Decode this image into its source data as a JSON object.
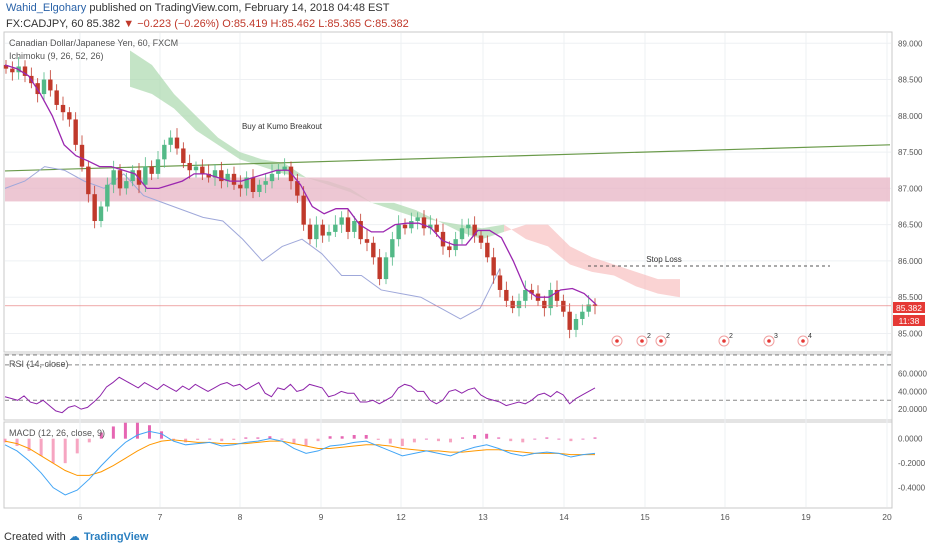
{
  "header": {
    "author": "Wahid_Elgohary",
    "published": " published on TradingView.com, February 14, 2018 04:48 EST",
    "symbol": "FX:CADJPY, 60",
    "last": "85.382",
    "change": "−0.223 (−0.26%)",
    "ohlc": "O:85.419 H:85.462 L:85.365 C:85.382"
  },
  "footer": {
    "created": "Created with",
    "brand": "TradingView"
  },
  "chart_data": [
    {
      "type": "candlestick",
      "title": "Canadian Dollar/Japanese Yen, 60, FXCM",
      "indicator": "Ichimoku (9, 26, 52, 26)",
      "ylim": [
        84.8,
        89.1
      ],
      "y_ticks": [
        "89.000",
        "88.500",
        "88.000",
        "87.500",
        "87.000",
        "86.500",
        "86.000",
        "85.500",
        "85.000"
      ],
      "x_ticks": [
        "6",
        "7",
        "8",
        "9",
        "12",
        "13",
        "14",
        "15",
        "16",
        "19",
        "20"
      ],
      "price_label": "85.382",
      "countdown_label": "11:38",
      "colors": {
        "up": "#53b987",
        "down": "#c0392b",
        "tenkan": "#9b27b0",
        "chikou": "#9fa8da",
        "cloud_bear": "#f8bbbb",
        "cloud_bull": "#a5d6a7",
        "zone": "#e8b9c8",
        "trend": "#6a9a4a"
      },
      "annotations": {
        "buy": "Buy at Kumo Breakout",
        "stop": "Stop Loss"
      },
      "zone": [
        86.82,
        87.15
      ],
      "trend_line": [
        [
          0,
          87.24
        ],
        [
          1,
          87.6
        ]
      ],
      "stop_loss_level": 85.93,
      "tenkan": [
        88.7,
        88.65,
        88.55,
        88.3,
        88.0,
        87.6,
        87.45,
        87.38,
        87.3,
        87.3,
        87.25,
        87.2,
        87.0,
        87.0,
        87.05,
        87.1,
        87.2,
        87.2,
        87.15,
        87.1,
        87.1,
        87.15,
        87.2,
        87.25,
        87.25,
        87.05,
        86.75,
        86.65,
        86.72,
        86.72,
        86.5,
        86.4,
        86.4,
        86.5,
        86.52,
        86.52,
        86.46,
        86.28,
        86.22,
        86.22,
        86.42,
        86.42,
        86.32,
        86.0,
        85.62,
        85.5,
        85.5,
        85.6,
        85.62,
        85.55,
        85.4
      ],
      "chikou": [
        87.0,
        87.1,
        87.3,
        87.25,
        87.1,
        87.0,
        87.2,
        86.9,
        86.8,
        86.7,
        86.6,
        86.55,
        86.3,
        86.0,
        86.2,
        86.3,
        86.1,
        85.8,
        85.8,
        85.6,
        85.55,
        85.5,
        85.35,
        85.2,
        85.35,
        85.9
      ],
      "cloud_a": [
        88.9,
        88.7,
        88.3,
        88.0,
        87.7,
        87.5,
        87.4,
        87.35,
        87.15,
        87.1,
        87.0,
        86.8,
        86.8,
        86.7,
        86.55,
        86.5,
        86.45,
        86.5,
        86.3,
        86.2,
        85.95,
        85.85,
        85.8,
        85.65,
        85.55,
        85.5
      ],
      "cloud_b": [
        88.4,
        88.3,
        88.1,
        87.8,
        87.6,
        87.4,
        87.3,
        87.2,
        87.15,
        87.05,
        86.95,
        86.8,
        86.7,
        86.6,
        86.55,
        86.4,
        86.3,
        86.4,
        86.5,
        86.5,
        86.2,
        86.05,
        85.95,
        85.85,
        85.75,
        85.75
      ],
      "closes": [
        88.65,
        88.6,
        88.68,
        88.55,
        88.45,
        88.3,
        88.5,
        88.35,
        88.15,
        88.05,
        87.95,
        87.6,
        87.3,
        86.92,
        86.55,
        86.75,
        87.05,
        87.25,
        87.0,
        87.1,
        87.25,
        87.05,
        87.3,
        87.2,
        87.4,
        87.6,
        87.7,
        87.55,
        87.35,
        87.25,
        87.3,
        87.2,
        87.15,
        87.25,
        87.1,
        87.2,
        87.05,
        87.0,
        87.15,
        86.95,
        87.05,
        87.1,
        87.2,
        87.25,
        87.3,
        87.1,
        86.9,
        86.5,
        86.3,
        86.5,
        86.35,
        86.4,
        86.5,
        86.6,
        86.4,
        86.55,
        86.3,
        86.25,
        86.05,
        85.75,
        86.05,
        86.3,
        86.5,
        86.45,
        86.55,
        86.6,
        86.45,
        86.5,
        86.4,
        86.2,
        86.15,
        86.3,
        86.45,
        86.5,
        86.35,
        86.25,
        86.05,
        85.8,
        85.6,
        85.45,
        85.35,
        85.45,
        85.6,
        85.55,
        85.45,
        85.35,
        85.6,
        85.45,
        85.3,
        85.05,
        85.2,
        85.3,
        85.4,
        85.38
      ],
      "rsi": {
        "label": "RSI (14, close)",
        "ylim": [
          10,
          80
        ],
        "y_ticks": [
          "60.0000",
          "40.0000",
          "20.0000"
        ],
        "bands": [
          70,
          30
        ],
        "values": [
          34,
          32,
          30,
          35,
          28,
          26,
          30,
          24,
          18,
          16,
          22,
          24,
          20,
          22,
          28,
          35,
          45,
          50,
          56,
          52,
          48,
          44,
          50,
          46,
          42,
          48,
          44,
          40,
          46,
          42,
          48,
          44,
          40,
          44,
          48,
          50,
          46,
          48,
          42,
          46,
          50,
          38,
          34,
          44,
          42,
          48,
          40,
          42,
          48,
          46,
          44,
          34,
          36,
          40,
          38,
          38,
          28,
          28,
          30,
          26,
          30,
          34,
          44,
          48,
          46,
          40,
          40,
          30,
          26,
          30,
          40,
          42,
          38,
          42,
          44,
          36,
          32,
          30,
          28,
          24,
          26,
          28,
          26,
          30,
          36,
          38,
          34,
          40,
          36,
          26,
          32,
          36,
          40,
          44
        ]
      },
      "macd": {
        "label": "MACD (12, 26, close, 9)",
        "ylim": [
          -0.55,
          0.12
        ],
        "y_ticks": [
          "0.0000",
          "-0.2000",
          "-0.4000"
        ],
        "macd_values": [
          -0.05,
          -0.1,
          -0.18,
          -0.28,
          -0.4,
          -0.46,
          -0.42,
          -0.33,
          -0.22,
          -0.12,
          -0.03,
          0.03,
          0.06,
          0.04,
          -0.02,
          -0.05,
          -0.04,
          -0.03,
          -0.06,
          -0.05,
          -0.03,
          -0.02,
          0.0,
          -0.02,
          -0.08,
          -0.12,
          -0.1,
          -0.06,
          -0.05,
          -0.03,
          -0.02,
          -0.06,
          -0.1,
          -0.14,
          -0.12,
          -0.1,
          -0.12,
          -0.14,
          -0.1,
          -0.07,
          -0.05,
          -0.08,
          -0.12,
          -0.14,
          -0.12,
          -0.11,
          -0.12,
          -0.15,
          -0.13,
          -0.12
        ],
        "signal_values": [
          -0.02,
          -0.04,
          -0.08,
          -0.14,
          -0.2,
          -0.26,
          -0.3,
          -0.3,
          -0.27,
          -0.22,
          -0.16,
          -0.1,
          -0.05,
          -0.02,
          -0.01,
          -0.02,
          -0.03,
          -0.03,
          -0.04,
          -0.04,
          -0.04,
          -0.03,
          -0.02,
          -0.02,
          -0.04,
          -0.06,
          -0.08,
          -0.08,
          -0.07,
          -0.06,
          -0.05,
          -0.05,
          -0.06,
          -0.08,
          -0.09,
          -0.1,
          -0.1,
          -0.11,
          -0.11,
          -0.1,
          -0.09,
          -0.09,
          -0.1,
          -0.11,
          -0.12,
          -0.12,
          -0.12,
          -0.13,
          -0.13,
          -0.13
        ]
      }
    }
  ]
}
